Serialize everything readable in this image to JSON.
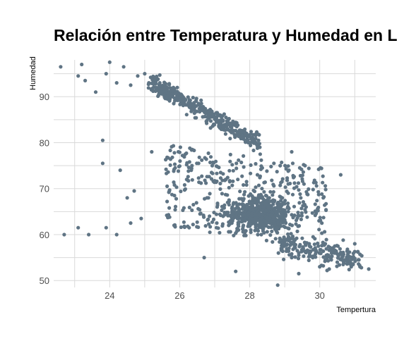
{
  "chart_data": {
    "type": "scatter",
    "title": "Relación entre Temperatura y Humedad en L",
    "xlabel": "Tempertura",
    "ylabel": "Humedad",
    "xlim": [
      22.4,
      31.6
    ],
    "ylim": [
      48.5,
      98
    ],
    "x_ticks": [
      24,
      26,
      28,
      30
    ],
    "y_ticks": [
      50,
      60,
      70,
      80,
      90
    ],
    "grid": true,
    "point_color": "#5f7484",
    "approx_points": 1600,
    "points_sample": [
      [
        22.6,
        96.5
      ],
      [
        23.1,
        94.5
      ],
      [
        23.2,
        97.0
      ],
      [
        23.3,
        93.5
      ],
      [
        23.6,
        91.0
      ],
      [
        23.9,
        95.0
      ],
      [
        24.0,
        97.5
      ],
      [
        24.2,
        93.0
      ],
      [
        24.4,
        96.5
      ],
      [
        24.6,
        92.5
      ],
      [
        24.8,
        94.5
      ],
      [
        25.0,
        95.0
      ],
      [
        23.8,
        80.5
      ],
      [
        23.8,
        75.5
      ],
      [
        22.7,
        60.0
      ],
      [
        23.1,
        61.5
      ],
      [
        23.4,
        60.0
      ],
      [
        23.9,
        61.5
      ],
      [
        24.2,
        60.0
      ],
      [
        24.6,
        62.5
      ],
      [
        24.9,
        63.5
      ],
      [
        24.3,
        74.0
      ],
      [
        24.5,
        68.0
      ],
      [
        24.7,
        69.5
      ],
      [
        25.2,
        78.0
      ],
      [
        29.1,
        71.0
      ],
      [
        29.2,
        55.0
      ],
      [
        29.4,
        56.0
      ],
      [
        29.8,
        55.0
      ],
      [
        30.0,
        53.0
      ],
      [
        30.5,
        54.0
      ],
      [
        30.9,
        53.0
      ],
      [
        31.0,
        58.0
      ],
      [
        31.4,
        52.5
      ],
      [
        30.6,
        73.0
      ],
      [
        29.2,
        78.0
      ],
      [
        28.8,
        49.0
      ],
      [
        29.4,
        51.5
      ],
      [
        27.6,
        52.0
      ],
      [
        26.7,
        55.0
      ]
    ]
  }
}
